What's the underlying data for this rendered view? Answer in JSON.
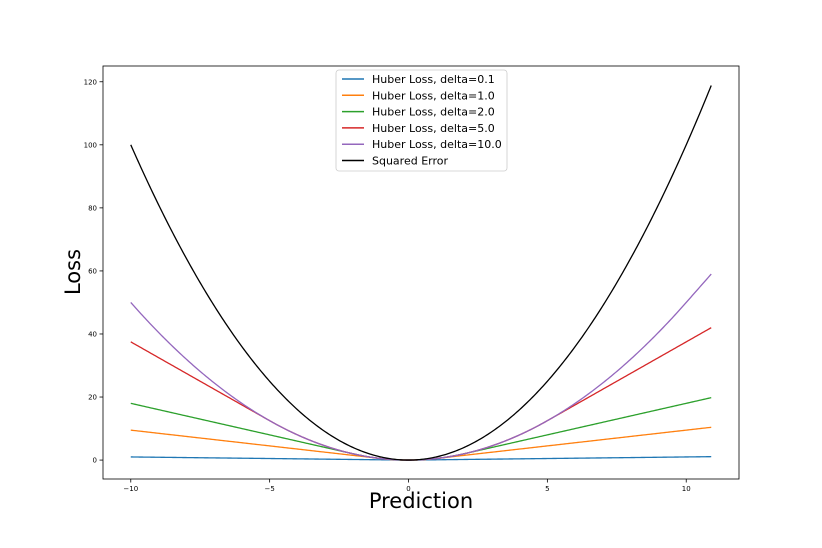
{
  "chart_data": {
    "type": "line",
    "title": "",
    "xlabel": "Prediction",
    "ylabel": "Loss",
    "xlim": [
      -11,
      11.9
    ],
    "ylim": [
      -6,
      125
    ],
    "x_ticks": [
      -10,
      -5,
      0,
      5,
      10
    ],
    "x_tick_labels": [
      "−10",
      "−5",
      "0",
      "5",
      "10"
    ],
    "y_ticks": [
      0,
      20,
      40,
      60,
      80,
      100,
      120
    ],
    "y_tick_labels": [
      "0",
      "20",
      "40",
      "60",
      "80",
      "100",
      "120"
    ],
    "x_range": [
      -10,
      10.9
    ],
    "grid": false,
    "legend_position": "top-center",
    "series": [
      {
        "name": "Huber Loss, delta=0.1",
        "kind": "huber",
        "delta": 0.1,
        "color": "#1f77b4"
      },
      {
        "name": "Huber Loss, delta=1.0",
        "kind": "huber",
        "delta": 1.0,
        "color": "#ff7f0e"
      },
      {
        "name": "Huber Loss, delta=2.0",
        "kind": "huber",
        "delta": 2.0,
        "color": "#2ca02c"
      },
      {
        "name": "Huber Loss, delta=5.0",
        "kind": "huber",
        "delta": 5.0,
        "color": "#d62728"
      },
      {
        "name": "Huber Loss, delta=10.0",
        "kind": "huber",
        "delta": 10.0,
        "color": "#9467bd"
      },
      {
        "name": "Squared Error",
        "kind": "squared",
        "color": "#000000"
      }
    ]
  }
}
